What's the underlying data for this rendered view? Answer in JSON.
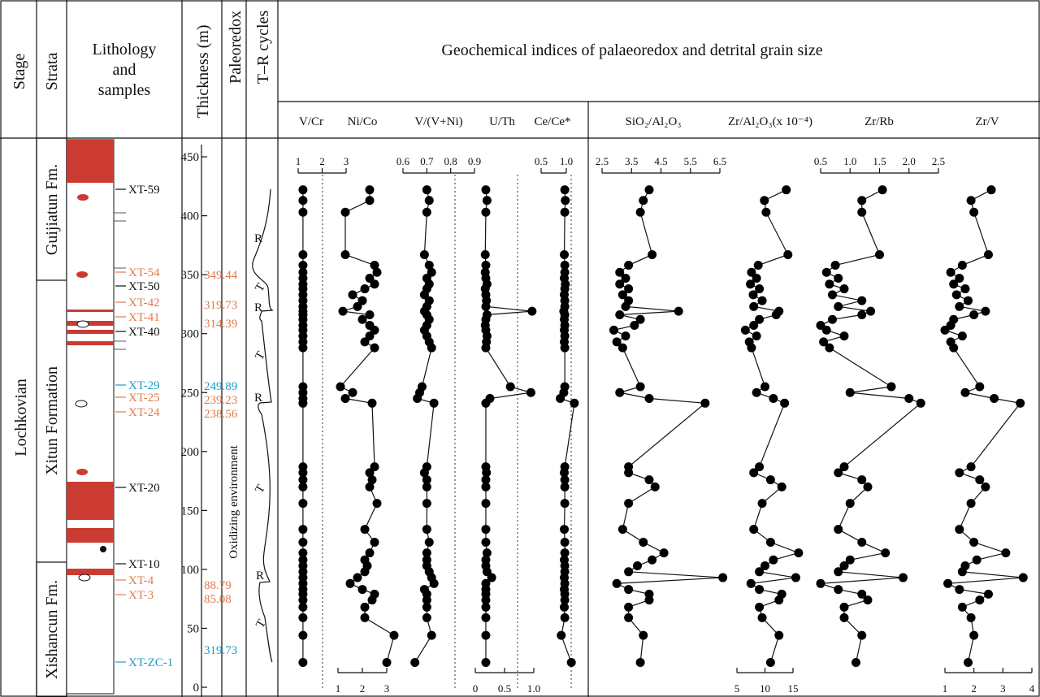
{
  "headers": {
    "stage": "Stage",
    "strata": "Strata",
    "lith1": "Lithology",
    "lith2": "and",
    "lith3": "samples",
    "thickness": "Thickness (m)",
    "paleoredox": "Paleoredox",
    "tr": "T–R cycles",
    "geo": "Geochemical  indices of palaeoredox and detrital grain size"
  },
  "stage_name": "Lochkovian",
  "strata": {
    "f1": "Guijiatun Fm.",
    "f2": "Xitun Formation",
    "f3": "Xishancun Fm."
  },
  "paleoredox_label": "Oxidizing environment",
  "thickness_ticks": [
    "0",
    "50",
    "100",
    "150",
    "200",
    "250",
    "300",
    "350",
    "400",
    "450"
  ],
  "samples": [
    {
      "label": "XT-59",
      "color": "#111111"
    },
    {
      "label": "XT-54",
      "color": "#e07a4a"
    },
    {
      "label": "XT-50",
      "color": "#111111"
    },
    {
      "label": "XT-42",
      "color": "#e07a4a"
    },
    {
      "label": "XT-41",
      "color": "#e07a4a"
    },
    {
      "label": "XT-40",
      "color": "#111111"
    },
    {
      "label": "XT-29",
      "color": "#1a9dc8"
    },
    {
      "label": "XT-25",
      "color": "#e07a4a"
    },
    {
      "label": "XT-24",
      "color": "#e07a4a"
    },
    {
      "label": "XT-20",
      "color": "#111111"
    },
    {
      "label": "XT-10",
      "color": "#111111"
    },
    {
      "label": "XT-4",
      "color": "#e07a4a"
    },
    {
      "label": "XT-3",
      "color": "#e07a4a"
    },
    {
      "label": "XT-ZC-1",
      "color": "#1a9dc8"
    }
  ],
  "ages": [
    {
      "label": "349.44",
      "color": "#e07a4a"
    },
    {
      "label": "319.73",
      "color": "#e07a4a"
    },
    {
      "label": "314.39",
      "color": "#e07a4a"
    },
    {
      "label": "249.89",
      "color": "#1a9dc8"
    },
    {
      "label": "239.23",
      "color": "#e07a4a"
    },
    {
      "label": "238.56",
      "color": "#e07a4a"
    },
    {
      "label": "88.79",
      "color": "#e07a4a"
    },
    {
      "label": "85.08",
      "color": "#e07a4a"
    },
    {
      "label": "319.73",
      "color": "#1a9dc8"
    }
  ],
  "tr_labels": [
    "R",
    "T",
    "R",
    "T",
    "R",
    "T",
    "R",
    "T"
  ],
  "chart_data": {
    "type": "scatter",
    "title": "Geochemical indices of palaeoredox and detrital grain size",
    "ylabel": "Thickness (m)",
    "ylim": [
      0,
      460
    ],
    "depth": [
      422,
      413,
      403,
      367,
      358,
      352,
      347,
      342,
      338,
      333,
      328,
      323,
      319,
      316,
      312,
      307,
      303,
      298,
      293,
      288,
      255,
      250,
      245,
      241,
      187,
      182,
      176,
      170,
      156,
      134,
      123,
      114,
      108,
      103,
      98,
      93,
      88,
      83,
      79,
      74,
      68,
      59,
      44,
      21
    ],
    "series": [
      {
        "name": "V/Cr",
        "axis": "top",
        "ticks": [
          "1",
          "2",
          "3"
        ],
        "xlim": [
          1,
          3
        ],
        "values": [
          1.2,
          1.2,
          1.2,
          1.2,
          1.2,
          1.2,
          1.2,
          1.2,
          1.2,
          1.2,
          1.2,
          1.2,
          1.2,
          1.2,
          1.2,
          1.2,
          1.2,
          1.2,
          1.2,
          1.2,
          1.2,
          1.2,
          1.2,
          1.2,
          1.2,
          1.2,
          1.2,
          1.2,
          1.2,
          1.2,
          1.2,
          1.2,
          1.2,
          1.2,
          1.2,
          1.2,
          1.2,
          1.2,
          1.2,
          1.2,
          1.2,
          1.2,
          1.2,
          1.2
        ]
      },
      {
        "name": "Ni/Co",
        "axis": "bottom",
        "ticks": [
          "1",
          "2",
          "3"
        ],
        "xlim": [
          1,
          3
        ],
        "values": [
          2.3,
          2.3,
          1.3,
          1.3,
          2.5,
          2.6,
          2.3,
          2.5,
          2.1,
          1.6,
          2.0,
          1.8,
          1.2,
          2.3,
          2.0,
          2.3,
          2.5,
          2.3,
          2.1,
          2.5,
          1.1,
          1.6,
          1.3,
          2.4,
          2.5,
          2.3,
          2.4,
          2.3,
          2.6,
          2.1,
          2.5,
          2.3,
          2.1,
          2.2,
          2.1,
          1.8,
          1.5,
          2.0,
          2.5,
          2.4,
          2.1,
          2.1,
          3.3,
          3.0
        ]
      },
      {
        "name": "V/(V+Ni)",
        "axis": "top",
        "ticks": [
          "0.6",
          "0.7",
          "0.8",
          "0.9"
        ],
        "xlim": [
          0.6,
          0.9
        ],
        "values": [
          0.7,
          0.71,
          0.7,
          0.69,
          0.71,
          0.72,
          0.7,
          0.71,
          0.7,
          0.69,
          0.71,
          0.7,
          0.69,
          0.7,
          0.71,
          0.7,
          0.69,
          0.7,
          0.71,
          0.72,
          0.68,
          0.67,
          0.66,
          0.73,
          0.7,
          0.69,
          0.7,
          0.7,
          0.7,
          0.7,
          0.71,
          0.7,
          0.7,
          0.7,
          0.71,
          0.72,
          0.73,
          0.69,
          0.7,
          0.7,
          0.7,
          0.7,
          0.72,
          0.65
        ]
      },
      {
        "name": "U/Th",
        "axis": "bottom",
        "ticks": [
          "0",
          "0.5",
          "1.0"
        ],
        "xlim": [
          0,
          1
        ],
        "values": [
          0.18,
          0.2,
          0.18,
          0.17,
          0.18,
          0.17,
          0.18,
          0.2,
          0.17,
          0.18,
          0.19,
          0.18,
          0.97,
          0.2,
          0.18,
          0.17,
          0.18,
          0.2,
          0.19,
          0.18,
          0.6,
          0.95,
          0.25,
          0.18,
          0.18,
          0.19,
          0.18,
          0.18,
          0.18,
          0.18,
          0.18,
          0.2,
          0.18,
          0.18,
          0.2,
          0.28,
          0.18,
          0.18,
          0.18,
          0.18,
          0.18,
          0.18,
          0.18,
          0.18
        ]
      },
      {
        "name": "Ce/Ce*",
        "axis": "top",
        "ticks": [
          "0.5",
          "1.0"
        ],
        "xlim": [
          0.5,
          1.0
        ],
        "values": [
          0.97,
          0.98,
          0.97,
          0.96,
          0.97,
          0.97,
          0.96,
          0.98,
          0.97,
          0.96,
          0.97,
          0.97,
          0.95,
          0.97,
          0.96,
          0.97,
          0.96,
          0.97,
          0.96,
          0.97,
          0.97,
          0.95,
          0.88,
          1.16,
          0.97,
          0.96,
          0.97,
          0.97,
          0.97,
          0.96,
          0.97,
          0.97,
          0.96,
          0.97,
          0.97,
          0.96,
          0.97,
          0.96,
          0.97,
          0.97,
          0.96,
          0.97,
          0.9,
          1.1
        ]
      },
      {
        "name": "SiO2/Al2O3",
        "axis": "top",
        "ticks": [
          "2.5",
          "3.5",
          "4.5",
          "5.5",
          "6.5"
        ],
        "xlim": [
          2.5,
          6.5
        ],
        "values": [
          4.1,
          3.9,
          3.8,
          4.2,
          3.4,
          3.1,
          3.3,
          3.1,
          3.4,
          3.2,
          3.4,
          3.3,
          5.1,
          3.1,
          3.8,
          3.6,
          2.9,
          3.3,
          3.0,
          3.2,
          3.8,
          3.1,
          4.1,
          6.0,
          3.4,
          3.4,
          4.1,
          4.3,
          3.4,
          3.2,
          3.9,
          4.6,
          4.2,
          3.7,
          3.4,
          6.6,
          3.0,
          3.4,
          4.1,
          4.1,
          3.4,
          3.4,
          3.9,
          3.8
        ]
      },
      {
        "name": "Zr/Al2O3(x10^-4)",
        "axis": "bottom",
        "ticks": [
          "5",
          "10",
          "15"
        ],
        "xlim": [
          5,
          15
        ],
        "values": [
          13.8,
          9.9,
          10.2,
          14.1,
          8.8,
          7.6,
          8.5,
          7.4,
          9.0,
          7.9,
          9.5,
          8.0,
          12.5,
          12.0,
          9.0,
          8.0,
          6.5,
          8.5,
          7.2,
          7.6,
          10.0,
          8.5,
          11.5,
          13.5,
          9.0,
          8.0,
          11.0,
          13.0,
          9.5,
          8.0,
          11.0,
          16.0,
          11.5,
          10.0,
          9.0,
          15.5,
          7.5,
          9.0,
          13.0,
          12.5,
          9.0,
          9.5,
          12.5,
          11.0
        ]
      },
      {
        "name": "Zr/Rb",
        "axis": "top",
        "ticks": [
          "0.5",
          "1.0",
          "1.5",
          "2.0",
          "2.5"
        ],
        "xlim": [
          0.5,
          2.5
        ],
        "values": [
          1.55,
          1.2,
          1.2,
          1.5,
          0.75,
          0.6,
          0.8,
          0.65,
          0.9,
          0.7,
          1.2,
          0.8,
          1.35,
          1.2,
          0.7,
          0.5,
          0.6,
          0.9,
          0.55,
          0.65,
          1.7,
          1.0,
          2.0,
          2.2,
          0.9,
          0.8,
          1.2,
          1.3,
          1.0,
          0.8,
          1.2,
          1.6,
          1.0,
          0.9,
          0.8,
          1.9,
          0.5,
          0.8,
          1.2,
          1.3,
          0.9,
          0.9,
          1.2,
          1.1
        ]
      },
      {
        "name": "Zr/V",
        "axis": "bottom",
        "ticks": [
          "1",
          "2",
          "3",
          "4"
        ],
        "xlim": [
          1,
          4
        ],
        "values": [
          2.6,
          1.9,
          2.0,
          2.5,
          1.6,
          1.2,
          1.5,
          1.3,
          1.7,
          1.4,
          1.8,
          1.5,
          2.4,
          2.0,
          1.3,
          1.2,
          1.0,
          1.6,
          1.2,
          1.3,
          2.2,
          1.7,
          2.7,
          3.6,
          1.9,
          1.5,
          2.2,
          2.4,
          1.9,
          1.5,
          2.0,
          3.1,
          2.1,
          1.7,
          1.6,
          3.7,
          1.1,
          1.5,
          2.5,
          2.2,
          1.6,
          1.9,
          2.0,
          1.8
        ]
      }
    ],
    "column_titles": [
      "V/Cr",
      "Ni/Co",
      "V/(V+Ni)",
      "U/Th",
      "Ce/Ce*",
      "SiO₂/Al₂O₃",
      "Zr/Al₂O₃(x 10⁻⁴)",
      "Zr/Rb",
      "Zr/V"
    ]
  }
}
